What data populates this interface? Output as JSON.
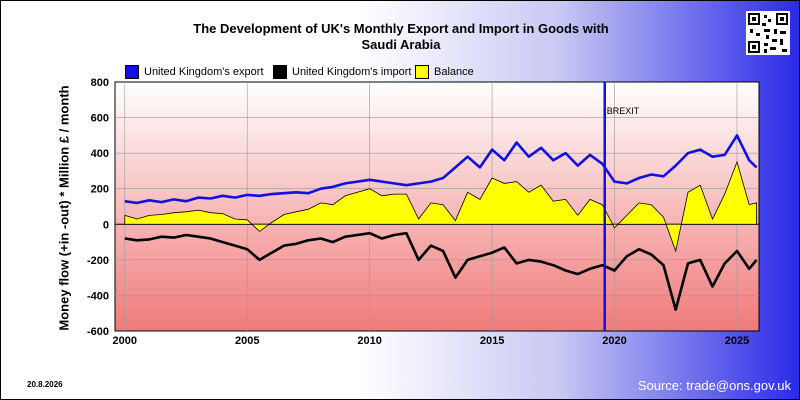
{
  "title_lines": [
    "The Development of UK's Monthly Export and Import in Goods with",
    "Saudi Arabia"
  ],
  "footer": {
    "date": "20.8.2026",
    "source": "Source: trade@ons.gov.uk"
  },
  "colors": {
    "export": "#1010e0",
    "import": "#000000",
    "balance": "#ffff00",
    "brexit": "#1010e0"
  },
  "chart_data": {
    "type": "line",
    "title": "The Development of UK's Monthly Export and Import in Goods with Saudi Arabia",
    "ylabel": "Money flow (+in -out) * Million £ / month",
    "xlabel": "",
    "xlim": [
      1999.6,
      2025.9
    ],
    "ylim": [
      -600,
      800
    ],
    "yticks": [
      800,
      600,
      400,
      200,
      0,
      -200,
      -400,
      -600
    ],
    "xticks": [
      2000,
      2005,
      2010,
      2015,
      2020,
      2025
    ],
    "grid": true,
    "legend": "top",
    "annotations": [
      {
        "label": "BREXIT",
        "x": 2019.6
      }
    ],
    "series": [
      {
        "name": "United Kingdom's export",
        "color": "#1010e0",
        "x": [
          2000.0,
          2000.5,
          2001.0,
          2001.5,
          2002.0,
          2002.5,
          2003.0,
          2003.5,
          2004.0,
          2004.5,
          2005.0,
          2005.5,
          2006.0,
          2006.5,
          2007.0,
          2007.5,
          2008.0,
          2008.5,
          2009.0,
          2009.5,
          2010.0,
          2010.5,
          2011.0,
          2011.5,
          2012.0,
          2012.5,
          2013.0,
          2013.5,
          2014.0,
          2014.5,
          2015.0,
          2015.5,
          2016.0,
          2016.5,
          2017.0,
          2017.5,
          2018.0,
          2018.5,
          2019.0,
          2019.5,
          2020.0,
          2020.5,
          2021.0,
          2021.5,
          2022.0,
          2022.5,
          2023.0,
          2023.5,
          2024.0,
          2024.5,
          2025.0,
          2025.5,
          2025.8
        ],
        "y": [
          130,
          120,
          135,
          125,
          140,
          130,
          150,
          145,
          160,
          150,
          165,
          160,
          170,
          175,
          180,
          175,
          200,
          210,
          230,
          240,
          250,
          240,
          230,
          220,
          230,
          240,
          260,
          320,
          380,
          320,
          420,
          360,
          460,
          380,
          430,
          360,
          400,
          330,
          390,
          340,
          240,
          230,
          260,
          280,
          270,
          330,
          400,
          420,
          380,
          390,
          500,
          360,
          320
        ]
      },
      {
        "name": "United Kingdom's import",
        "color": "#000000",
        "x": [
          2000.0,
          2000.5,
          2001.0,
          2001.5,
          2002.0,
          2002.5,
          2003.0,
          2003.5,
          2004.0,
          2004.5,
          2005.0,
          2005.5,
          2006.0,
          2006.5,
          2007.0,
          2007.5,
          2008.0,
          2008.5,
          2009.0,
          2009.5,
          2010.0,
          2010.5,
          2011.0,
          2011.5,
          2012.0,
          2012.5,
          2013.0,
          2013.5,
          2014.0,
          2014.5,
          2015.0,
          2015.5,
          2016.0,
          2016.5,
          2017.0,
          2017.5,
          2018.0,
          2018.5,
          2019.0,
          2019.5,
          2020.0,
          2020.5,
          2021.0,
          2021.5,
          2022.0,
          2022.5,
          2023.0,
          2023.5,
          2024.0,
          2024.5,
          2025.0,
          2025.5,
          2025.8
        ],
        "y": [
          -80,
          -90,
          -85,
          -70,
          -75,
          -60,
          -70,
          -80,
          -100,
          -120,
          -140,
          -200,
          -160,
          -120,
          -110,
          -90,
          -80,
          -100,
          -70,
          -60,
          -50,
          -80,
          -60,
          -50,
          -200,
          -120,
          -150,
          -300,
          -200,
          -180,
          -160,
          -130,
          -220,
          -200,
          -210,
          -230,
          -260,
          -280,
          -250,
          -230,
          -260,
          -180,
          -140,
          -170,
          -230,
          -480,
          -220,
          -200,
          -350,
          -220,
          -150,
          -250,
          -200
        ]
      },
      {
        "name": "Balance",
        "color": "#ffff00",
        "x": [
          2000.0,
          2000.5,
          2001.0,
          2001.5,
          2002.0,
          2002.5,
          2003.0,
          2003.5,
          2004.0,
          2004.5,
          2005.0,
          2005.5,
          2006.0,
          2006.5,
          2007.0,
          2007.5,
          2008.0,
          2008.5,
          2009.0,
          2009.5,
          2010.0,
          2010.5,
          2011.0,
          2011.5,
          2012.0,
          2012.5,
          2013.0,
          2013.5,
          2014.0,
          2014.5,
          2015.0,
          2015.5,
          2016.0,
          2016.5,
          2017.0,
          2017.5,
          2018.0,
          2018.5,
          2019.0,
          2019.5,
          2020.0,
          2020.5,
          2021.0,
          2021.5,
          2022.0,
          2022.5,
          2023.0,
          2023.5,
          2024.0,
          2024.5,
          2025.0,
          2025.5,
          2025.8
        ],
        "y": [
          50,
          30,
          50,
          55,
          65,
          70,
          80,
          65,
          60,
          30,
          25,
          -40,
          10,
          55,
          70,
          85,
          120,
          110,
          160,
          180,
          200,
          160,
          170,
          170,
          30,
          120,
          110,
          20,
          180,
          140,
          260,
          230,
          240,
          180,
          220,
          130,
          140,
          50,
          140,
          110,
          -20,
          50,
          120,
          110,
          40,
          -150,
          180,
          220,
          30,
          170,
          350,
          110,
          120
        ]
      }
    ]
  }
}
